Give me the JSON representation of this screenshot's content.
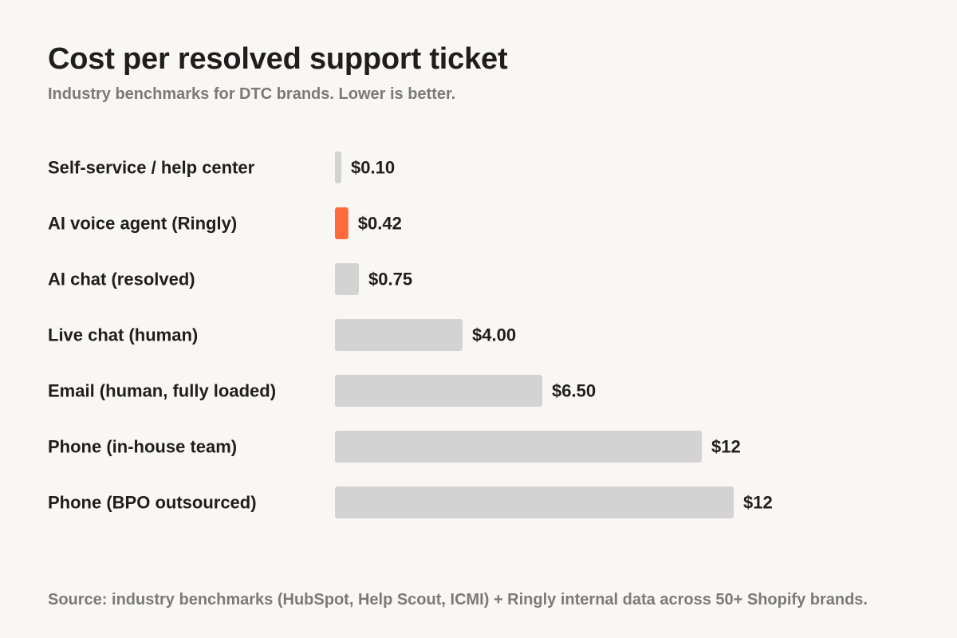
{
  "chart_data": {
    "type": "bar",
    "orientation": "horizontal",
    "title": "Cost per resolved support ticket",
    "subtitle": "Industry benchmarks for DTC brands. Lower is better.",
    "categories": [
      "Self-service / help center",
      "AI voice agent (Ringly)",
      "AI chat (resolved)",
      "Live chat (human)",
      "Email (human, fully loaded)",
      "Phone (in-house team)",
      "Phone (BPO outsourced)"
    ],
    "values": [
      0.1,
      0.42,
      0.75,
      4.0,
      6.5,
      11.5,
      12.5
    ],
    "value_labels": [
      "$0.10",
      "$0.42",
      "$0.75",
      "$4.00",
      "$6.50",
      "$12",
      "$12"
    ],
    "highlight": "AI voice agent (Ringly)",
    "xlim": [
      0,
      12.5
    ],
    "grid": false,
    "source": "Source: industry benchmarks (HubSpot, Help Scout, ICMI) + Ringly internal data across 50+ Shopify brands."
  },
  "colors": {
    "bar": "#d3d3d3",
    "highlight": "#ff6a3d",
    "text": "#1e1e1e",
    "muted": "#7a7a7a",
    "background": "#f9f7f4"
  }
}
